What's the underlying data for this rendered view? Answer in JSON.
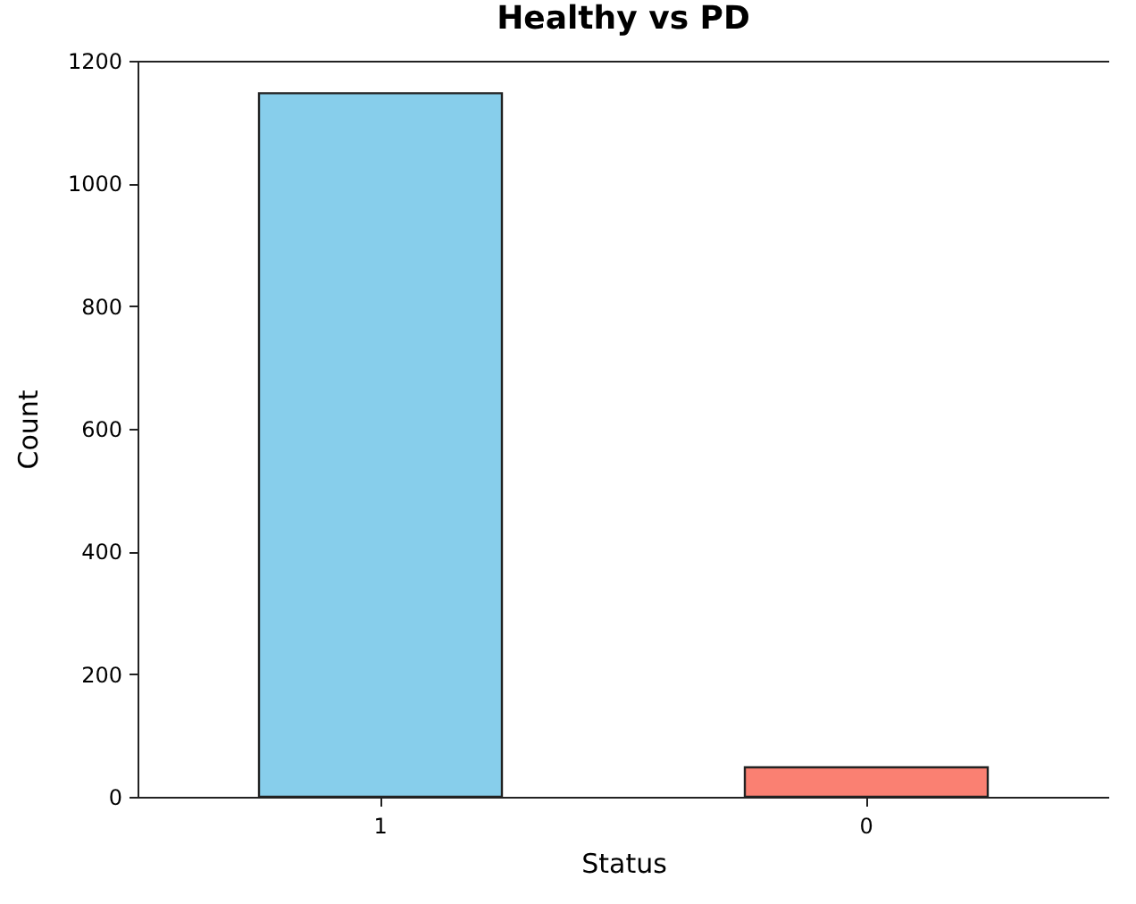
{
  "chart_data": {
    "type": "bar",
    "title": "Healthy vs PD",
    "xlabel": "Status",
    "ylabel": "Count",
    "categories": [
      "1",
      "0"
    ],
    "colors": [
      "#87ceeb",
      "#fa8072"
    ],
    "values": [
      1147,
      48
    ],
    "ylim": [
      0,
      1200
    ],
    "yticks": [
      0,
      200,
      400,
      600,
      800,
      1000,
      1200
    ],
    "grid": false,
    "legend": false
  }
}
